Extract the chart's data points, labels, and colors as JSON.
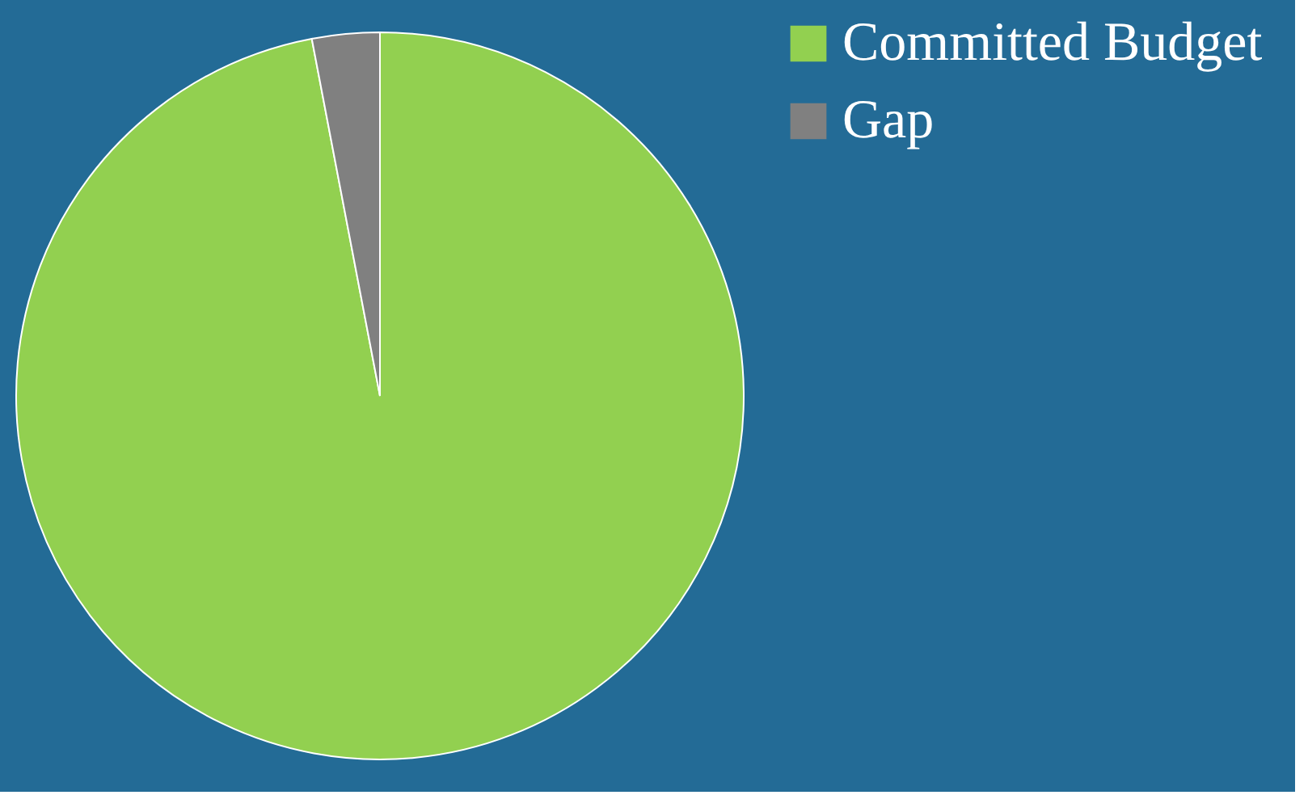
{
  "chart_data": {
    "type": "pie",
    "categories": [
      "Committed Budget",
      "Gap"
    ],
    "values": [
      97,
      3
    ],
    "colors": [
      "#92d050",
      "#808080"
    ],
    "legend": "right"
  }
}
